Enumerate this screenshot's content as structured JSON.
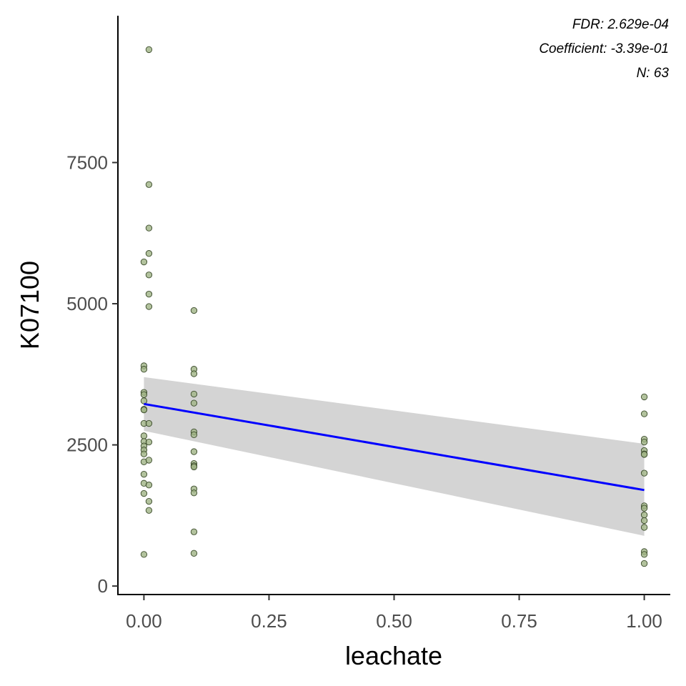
{
  "chart_data": {
    "type": "scatter",
    "xlabel": "leachate",
    "ylabel": "K07100",
    "xlim": [
      -0.052,
      1.052
    ],
    "ylim": [
      -150,
      10100
    ],
    "x_ticks": [
      0,
      0.25,
      0.5,
      0.75,
      1
    ],
    "x_tick_labels": [
      "0.00",
      "0.25",
      "0.50",
      "0.75",
      "1.00"
    ],
    "y_ticks": [
      0,
      2500,
      5000,
      7500
    ],
    "y_tick_labels": [
      "0",
      "2500",
      "5000",
      "7500"
    ],
    "grid": false,
    "legend": "none",
    "annotations": [
      "FDR: 2.629e-04",
      "Coefficient: -3.39e-01",
      "N: 63"
    ],
    "point_color": "#9fb385",
    "line_color": "#0000ff",
    "band_color": "#d4d4d4",
    "points": [
      [
        0.01,
        9500
      ],
      [
        0.01,
        7110
      ],
      [
        0.01,
        6340
      ],
      [
        0.01,
        5890
      ],
      [
        0.0,
        5740
      ],
      [
        0.01,
        5510
      ],
      [
        0.01,
        5170
      ],
      [
        0.01,
        4950
      ],
      [
        0.0,
        3900
      ],
      [
        0.0,
        3840
      ],
      [
        0.0,
        3430
      ],
      [
        0.0,
        3390
      ],
      [
        0.0,
        3280
      ],
      [
        0.0,
        3130
      ],
      [
        0.0,
        3120
      ],
      [
        0.0,
        2880
      ],
      [
        0.0,
        2660
      ],
      [
        0.0,
        2560
      ],
      [
        0.0,
        2480
      ],
      [
        0.0,
        2410
      ],
      [
        0.0,
        2340
      ],
      [
        0.0,
        2200
      ],
      [
        0.0,
        1980
      ],
      [
        0.0,
        1820
      ],
      [
        0.0,
        1640
      ],
      [
        0.0,
        560
      ],
      [
        0.01,
        2880
      ],
      [
        0.01,
        2550
      ],
      [
        0.01,
        2230
      ],
      [
        0.01,
        1790
      ],
      [
        0.01,
        1500
      ],
      [
        0.01,
        1340
      ],
      [
        0.1,
        4880
      ],
      [
        0.1,
        3840
      ],
      [
        0.1,
        3760
      ],
      [
        0.1,
        3400
      ],
      [
        0.1,
        3240
      ],
      [
        0.1,
        2730
      ],
      [
        0.1,
        2680
      ],
      [
        0.1,
        2380
      ],
      [
        0.1,
        2170
      ],
      [
        0.1,
        2130
      ],
      [
        0.1,
        2110
      ],
      [
        0.1,
        1720
      ],
      [
        0.1,
        1650
      ],
      [
        0.1,
        960
      ],
      [
        0.1,
        580
      ],
      [
        1.0,
        3350
      ],
      [
        1.0,
        3050
      ],
      [
        1.0,
        2600
      ],
      [
        1.0,
        2550
      ],
      [
        1.0,
        2400
      ],
      [
        1.0,
        2340
      ],
      [
        1.0,
        2000
      ],
      [
        1.0,
        1420
      ],
      [
        1.0,
        1380
      ],
      [
        1.0,
        1260
      ],
      [
        1.0,
        1160
      ],
      [
        1.0,
        1040
      ],
      [
        1.0,
        610
      ],
      [
        1.0,
        560
      ],
      [
        1.0,
        400
      ],
      [
        1.0,
        2330
      ]
    ],
    "fit_line": [
      [
        0.0,
        3225
      ],
      [
        1.0,
        1700
      ]
    ],
    "confidence_band": {
      "x": [
        0.0,
        1.0
      ],
      "upper": [
        3700,
        2520
      ],
      "lower": [
        2750,
        890
      ]
    }
  }
}
